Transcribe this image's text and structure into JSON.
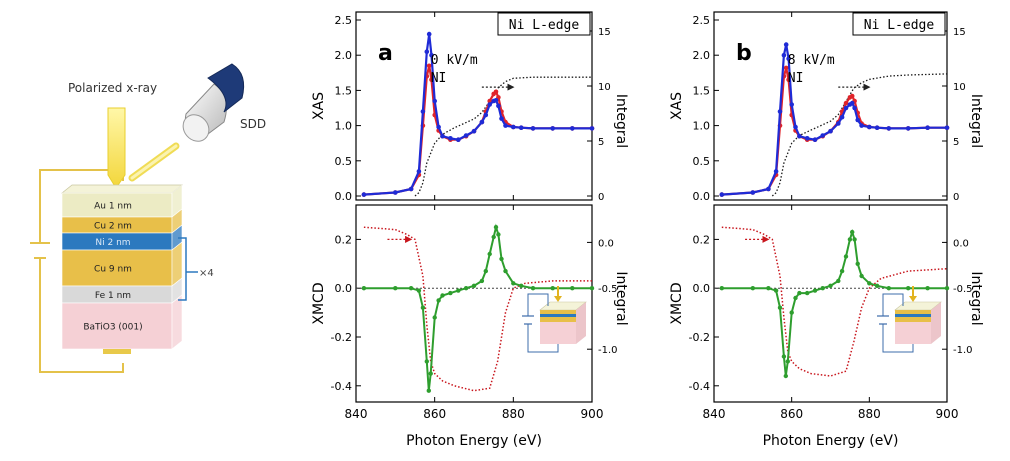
{
  "schematic": {
    "polarized_label": "Polarized x-ray",
    "sdd_label": "SDD",
    "repeat_label": "×4",
    "layers": [
      {
        "label": "Au 1 nm",
        "color": "#ecebc4"
      },
      {
        "label": "Cu 2 nm",
        "color": "#e8bf49"
      },
      {
        "label": "Ni 2 nm",
        "color": "#2c79bf"
      },
      {
        "label": "Cu 9 nm",
        "color": "#e8bf49"
      },
      {
        "label": "Fe 1 nm",
        "color": "#d9d9d9"
      },
      {
        "label": "BaTiO3 (001)",
        "color": "#f5d0d5"
      }
    ]
  },
  "colors": {
    "red": "#e0242a",
    "blue": "#1f2bd6",
    "green": "#2e9e2e",
    "integral_dark": "#1a1a1a",
    "integral_red": "#c8161d"
  },
  "chart_data": [
    {
      "type": "line",
      "panel": "a",
      "edge_label": "Ni L-edge",
      "field_label": "0 kV/m",
      "ni_label": "NI",
      "xlabel": "Photon Energy (eV)",
      "xlim": [
        840,
        900
      ],
      "xticks": [
        840,
        860,
        880,
        900
      ],
      "top": {
        "ylabel": "XAS",
        "ylim": [
          0,
          2.5
        ],
        "yticks": [
          0.0,
          0.5,
          1.0,
          1.5,
          2.0,
          2.5
        ],
        "ylabel_right": "Integral",
        "ylim_right": [
          0,
          16
        ],
        "yticks_right": [
          0,
          5,
          10,
          15
        ],
        "series": [
          {
            "color_key": "red",
            "x": [
              842,
              850,
              854,
              856,
              857,
              858,
              858.6,
              859.2,
              860,
              861,
              862,
              864,
              866,
              868,
              870,
              872,
              873,
              874,
              875,
              875.6,
              876.2,
              877,
              878,
              880,
              882,
              885,
              890,
              895,
              900
            ],
            "y": [
              0.02,
              0.05,
              0.1,
              0.3,
              1.0,
              1.7,
              1.85,
              1.65,
              1.15,
              0.93,
              0.85,
              0.8,
              0.8,
              0.85,
              0.92,
              1.05,
              1.2,
              1.35,
              1.45,
              1.48,
              1.4,
              1.2,
              1.05,
              0.98,
              0.97,
              0.96,
              0.96,
              0.96,
              0.96
            ]
          },
          {
            "color_key": "blue",
            "x": [
              842,
              850,
              854,
              856,
              857,
              858,
              858.6,
              859.2,
              860,
              861,
              862,
              864,
              866,
              868,
              870,
              872,
              873,
              874,
              875,
              875.6,
              876.2,
              877,
              878,
              880,
              882,
              885,
              890,
              895,
              900
            ],
            "y": [
              0.02,
              0.05,
              0.1,
              0.35,
              1.2,
              2.05,
              2.3,
              2.0,
              1.35,
              0.98,
              0.85,
              0.82,
              0.8,
              0.86,
              0.92,
              1.05,
              1.15,
              1.3,
              1.35,
              1.36,
              1.28,
              1.1,
              1.0,
              0.98,
              0.97,
              0.96,
              0.96,
              0.96,
              0.96
            ]
          }
        ],
        "integral": {
          "color_key": "integral_dark",
          "x": [
            855,
            856,
            857,
            858,
            860,
            862,
            865,
            870,
            872,
            874,
            876,
            878,
            880,
            885,
            890,
            900
          ],
          "y": [
            0,
            0.3,
            1.2,
            3.0,
            4.8,
            5.6,
            6.2,
            7.0,
            7.6,
            8.6,
            9.8,
            10.4,
            10.7,
            10.8,
            10.8,
            10.8
          ]
        }
      },
      "bottom": {
        "ylabel": "XMCD",
        "ylim": [
          -0.45,
          0.3
        ],
        "yticks": [
          -0.4,
          -0.2,
          0.0,
          0.2
        ],
        "ylabel_right": "Integral",
        "yticks_right_labels": [
          "0.0",
          "-0.5",
          "-1.0"
        ],
        "series": [
          {
            "color_key": "green",
            "x": [
              842,
              850,
              854,
              856,
              857,
              858,
              858.5,
              859,
              860,
              861,
              862,
              864,
              866,
              868,
              870,
              872,
              873,
              874,
              875,
              875.6,
              876.2,
              877,
              878,
              880,
              882,
              885,
              890,
              895,
              900
            ],
            "y": [
              0,
              0,
              0,
              -0.01,
              -0.08,
              -0.3,
              -0.42,
              -0.35,
              -0.12,
              -0.05,
              -0.03,
              -0.02,
              -0.01,
              0,
              0.01,
              0.03,
              0.07,
              0.14,
              0.21,
              0.25,
              0.22,
              0.12,
              0.07,
              0.02,
              0.01,
              0,
              0,
              0,
              0
            ]
          }
        ],
        "integral": {
          "color_key": "integral_red",
          "x": [
            842,
            850,
            853,
            855,
            857,
            858,
            859,
            860,
            862,
            865,
            870,
            874,
            876,
            878,
            880,
            883,
            890,
            900
          ],
          "y": [
            0.25,
            0.24,
            0.22,
            0.2,
            0.05,
            -0.15,
            -0.3,
            -0.35,
            -0.38,
            -0.4,
            -0.42,
            -0.41,
            -0.3,
            -0.1,
            0.0,
            0.02,
            0.03,
            0.03
          ]
        }
      }
    },
    {
      "type": "line",
      "panel": "b",
      "edge_label": "Ni L-edge",
      "field_label": "8 kV/m",
      "ni_label": "NI",
      "xlabel": "Photon Energy (eV)",
      "xlim": [
        840,
        900
      ],
      "xticks": [
        840,
        860,
        880,
        900
      ],
      "top": {
        "ylabel": "XAS",
        "ylim": [
          0,
          2.5
        ],
        "yticks": [
          0.0,
          0.5,
          1.0,
          1.5,
          2.0,
          2.5
        ],
        "ylabel_right": "Integral",
        "ylim_right": [
          0,
          16
        ],
        "yticks_right": [
          0,
          5,
          10,
          15
        ],
        "series": [
          {
            "color_key": "red",
            "x": [
              842,
              850,
              854,
              856,
              857,
              858,
              858.6,
              859.2,
              860,
              861,
              862,
              864,
              866,
              868,
              870,
              872,
              873,
              874,
              875,
              875.6,
              876.2,
              877,
              878,
              880,
              882,
              885,
              890,
              895,
              900
            ],
            "y": [
              0.02,
              0.05,
              0.1,
              0.3,
              1.0,
              1.7,
              1.82,
              1.65,
              1.15,
              0.93,
              0.85,
              0.8,
              0.8,
              0.85,
              0.92,
              1.05,
              1.2,
              1.32,
              1.4,
              1.42,
              1.35,
              1.18,
              1.03,
              0.98,
              0.97,
              0.96,
              0.96,
              0.97,
              0.97
            ]
          },
          {
            "color_key": "blue",
            "x": [
              842,
              850,
              854,
              856,
              857,
              858,
              858.6,
              859.2,
              860,
              861,
              862,
              864,
              866,
              868,
              870,
              872,
              873,
              874,
              875,
              875.6,
              876.2,
              877,
              878,
              880,
              882,
              885,
              890,
              895,
              900
            ],
            "y": [
              0.02,
              0.05,
              0.1,
              0.35,
              1.2,
              2.0,
              2.15,
              1.95,
              1.3,
              0.98,
              0.85,
              0.82,
              0.8,
              0.86,
              0.92,
              1.03,
              1.12,
              1.25,
              1.3,
              1.32,
              1.25,
              1.08,
              1.0,
              0.98,
              0.97,
              0.96,
              0.96,
              0.97,
              0.97
            ]
          }
        ],
        "integral": {
          "color_key": "integral_dark",
          "x": [
            855,
            856,
            857,
            858,
            860,
            862,
            865,
            870,
            872,
            874,
            876,
            878,
            880,
            885,
            890,
            900
          ],
          "y": [
            0,
            0.3,
            1.2,
            3.0,
            4.8,
            5.5,
            6.0,
            6.8,
            7.4,
            8.6,
            9.8,
            10.3,
            10.6,
            10.9,
            11.0,
            11.1
          ]
        }
      },
      "bottom": {
        "ylabel": "XMCD",
        "ylim": [
          -0.45,
          0.3
        ],
        "yticks": [
          -0.4,
          -0.2,
          0.0,
          0.2
        ],
        "ylabel_right": "Integral",
        "yticks_right_labels": [
          "0.0",
          "-0.5",
          "-1.0"
        ],
        "series": [
          {
            "color_key": "green",
            "x": [
              842,
              850,
              854,
              856,
              857,
              858,
              858.5,
              859,
              860,
              861,
              862,
              864,
              866,
              868,
              870,
              872,
              873,
              874,
              875,
              875.6,
              876.2,
              877,
              878,
              880,
              882,
              885,
              890,
              895,
              900
            ],
            "y": [
              0,
              0,
              0,
              -0.01,
              -0.08,
              -0.28,
              -0.36,
              -0.3,
              -0.1,
              -0.04,
              -0.02,
              -0.02,
              -0.01,
              0,
              0.01,
              0.03,
              0.07,
              0.13,
              0.2,
              0.23,
              0.2,
              0.1,
              0.05,
              0.02,
              0.01,
              0,
              0,
              0,
              0
            ]
          }
        ],
        "integral": {
          "color_key": "integral_red",
          "x": [
            842,
            850,
            853,
            855,
            857,
            858,
            859,
            860,
            862,
            865,
            870,
            874,
            876,
            878,
            880,
            883,
            890,
            900
          ],
          "y": [
            0.25,
            0.24,
            0.22,
            0.2,
            0.05,
            -0.12,
            -0.26,
            -0.3,
            -0.33,
            -0.35,
            -0.36,
            -0.34,
            -0.22,
            -0.08,
            0.0,
            0.04,
            0.07,
            0.08
          ]
        }
      }
    }
  ]
}
